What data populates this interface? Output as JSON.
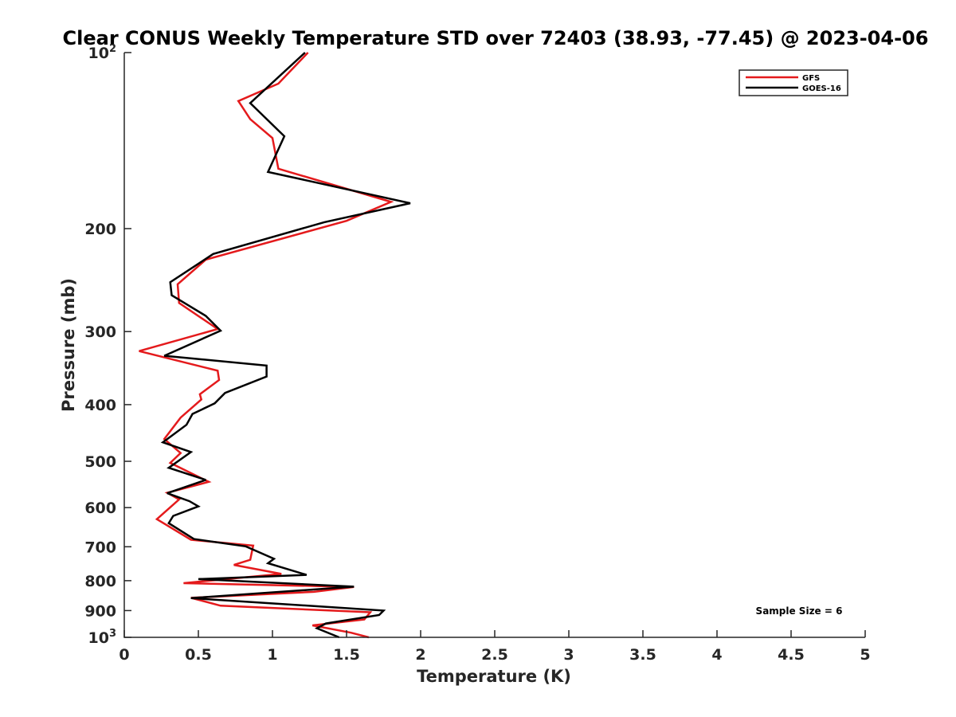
{
  "chart_data": {
    "type": "line",
    "title": "Clear CONUS Weekly Temperature STD over 72403 (38.93, -77.45) @ 2023-04-06",
    "xlabel": "Temperature (K)",
    "ylabel": "Pressure (mb)",
    "xlim": [
      0,
      5
    ],
    "ylim": [
      100,
      1000
    ],
    "y_scale": "log",
    "y_reversed": true,
    "x_ticks": [
      "0",
      "0.5",
      "1",
      "1.5",
      "2",
      "2.5",
      "3",
      "3.5",
      "4",
      "4.5",
      "5"
    ],
    "y_ticks": [
      {
        "value": 100,
        "label": "10",
        "sup": "2"
      },
      {
        "value": 200,
        "label": "200",
        "sup": ""
      },
      {
        "value": 300,
        "label": "300",
        "sup": ""
      },
      {
        "value": 400,
        "label": "400",
        "sup": ""
      },
      {
        "value": 500,
        "label": "500",
        "sup": ""
      },
      {
        "value": 600,
        "label": "600",
        "sup": ""
      },
      {
        "value": 700,
        "label": "700",
        "sup": ""
      },
      {
        "value": 800,
        "label": "800",
        "sup": ""
      },
      {
        "value": 900,
        "label": "900",
        "sup": ""
      },
      {
        "value": 1000,
        "label": "10",
        "sup": "3"
      }
    ],
    "grid": false,
    "legend_position": "top-right",
    "annotation": "Sample Size = 6",
    "series": [
      {
        "name": "GFS",
        "color": "#e41a1c",
        "points": [
          [
            1.24,
            100
          ],
          [
            1.04,
            113
          ],
          [
            0.77,
            121
          ],
          [
            0.85,
            130
          ],
          [
            1.0,
            140
          ],
          [
            1.04,
            158
          ],
          [
            1.8,
            180
          ],
          [
            1.5,
            194
          ],
          [
            0.55,
            226
          ],
          [
            0.36,
            249
          ],
          [
            0.37,
            268
          ],
          [
            0.63,
            297
          ],
          [
            0.1,
            324
          ],
          [
            0.63,
            350
          ],
          [
            0.64,
            363
          ],
          [
            0.51,
            384
          ],
          [
            0.52,
            392
          ],
          [
            0.38,
            421
          ],
          [
            0.27,
            458
          ],
          [
            0.38,
            484
          ],
          [
            0.31,
            503
          ],
          [
            0.57,
            542
          ],
          [
            0.29,
            566
          ],
          [
            0.37,
            581
          ],
          [
            0.22,
            628
          ],
          [
            0.45,
            681
          ],
          [
            0.87,
            697
          ],
          [
            0.85,
            737
          ],
          [
            0.74,
            752
          ],
          [
            1.06,
            779
          ],
          [
            0.4,
            808
          ],
          [
            1.55,
            820
          ],
          [
            1.28,
            836
          ],
          [
            0.45,
            856
          ],
          [
            0.65,
            883
          ],
          [
            1.66,
            906
          ],
          [
            1.62,
            932
          ],
          [
            1.27,
            954
          ],
          [
            1.53,
            982
          ],
          [
            1.65,
            1000
          ]
        ]
      },
      {
        "name": "GOES-16",
        "color": "#000000",
        "points": [
          [
            1.22,
            100
          ],
          [
            0.85,
            122
          ],
          [
            1.08,
            139
          ],
          [
            0.97,
            160
          ],
          [
            1.93,
            181
          ],
          [
            1.35,
            195
          ],
          [
            0.6,
            221
          ],
          [
            0.31,
            247
          ],
          [
            0.32,
            260
          ],
          [
            0.55,
            282
          ],
          [
            0.65,
            299
          ],
          [
            0.27,
            330
          ],
          [
            0.96,
            343
          ],
          [
            0.96,
            358
          ],
          [
            0.68,
            382
          ],
          [
            0.61,
            398
          ],
          [
            0.46,
            415
          ],
          [
            0.42,
            433
          ],
          [
            0.26,
            464
          ],
          [
            0.45,
            482
          ],
          [
            0.3,
            513
          ],
          [
            0.55,
            538
          ],
          [
            0.29,
            567
          ],
          [
            0.44,
            585
          ],
          [
            0.5,
            597
          ],
          [
            0.33,
            620
          ],
          [
            0.3,
            638
          ],
          [
            0.47,
            679
          ],
          [
            0.82,
            699
          ],
          [
            1.01,
            734
          ],
          [
            0.97,
            747
          ],
          [
            1.23,
            782
          ],
          [
            0.5,
            795
          ],
          [
            1.55,
            819
          ],
          [
            0.45,
            857
          ],
          [
            1.75,
            900
          ],
          [
            1.72,
            916
          ],
          [
            1.36,
            947
          ],
          [
            1.3,
            965
          ],
          [
            1.45,
            1000
          ]
        ]
      }
    ]
  }
}
